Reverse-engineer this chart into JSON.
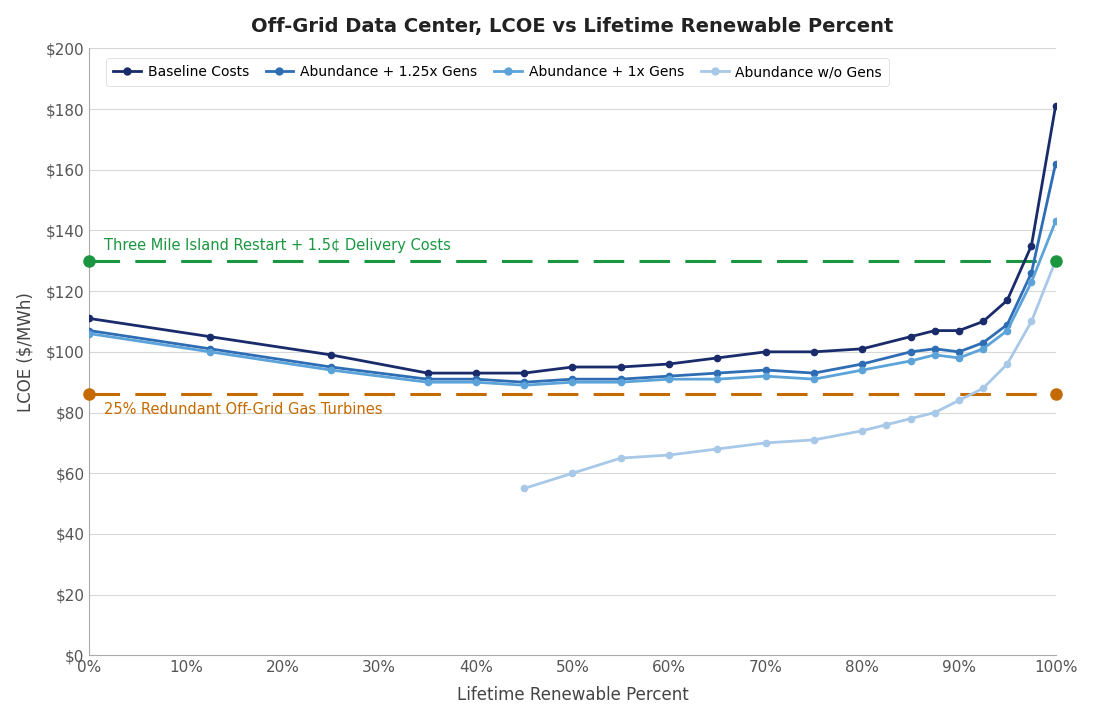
{
  "title": "Off-Grid Data Center, LCOE vs Lifetime Renewable Percent",
  "xlabel": "Lifetime Renewable Percent",
  "ylabel": "LCOE ($/MWh)",
  "background_color": "#f2f2f2",
  "plot_background": "#f2f2f2",
  "grid_color": "#d8d8d8",
  "hline_green": 130,
  "hline_orange": 86,
  "hline_green_color": "#1a9641",
  "hline_orange_color": "#c46a00",
  "hline_green_label": "Three Mile Island Restart + 1.5¢ Delivery Costs",
  "hline_orange_label": "25% Redundant Off-Grid Gas Turbines",
  "ylim": [
    0,
    200
  ],
  "yticks": [
    0,
    20,
    40,
    60,
    80,
    100,
    120,
    140,
    160,
    180,
    200
  ],
  "xticks": [
    0,
    10,
    20,
    30,
    40,
    50,
    60,
    70,
    80,
    90,
    100
  ],
  "series": [
    {
      "label": "Baseline Costs",
      "color": "#1a2b6b",
      "x": [
        0,
        12.5,
        25,
        35,
        40,
        45,
        50,
        55,
        60,
        65,
        70,
        75,
        80,
        85,
        87.5,
        90,
        92.5,
        95,
        97.5,
        100
      ],
      "y": [
        111,
        105,
        99,
        93,
        93,
        93,
        95,
        95,
        96,
        98,
        100,
        100,
        101,
        105,
        107,
        107,
        110,
        117,
        135,
        181
      ]
    },
    {
      "label": "Abundance + 1.25x Gens",
      "color": "#2e6db4",
      "x": [
        0,
        12.5,
        25,
        35,
        40,
        45,
        50,
        55,
        60,
        65,
        70,
        75,
        80,
        85,
        87.5,
        90,
        92.5,
        95,
        97.5,
        100
      ],
      "y": [
        107,
        101,
        95,
        91,
        91,
        90,
        91,
        91,
        92,
        93,
        94,
        93,
        96,
        100,
        101,
        100,
        103,
        109,
        126,
        162
      ]
    },
    {
      "label": "Abundance + 1x Gens",
      "color": "#5ba3d9",
      "x": [
        0,
        12.5,
        25,
        35,
        40,
        45,
        50,
        55,
        60,
        65,
        70,
        75,
        80,
        85,
        87.5,
        90,
        92.5,
        95,
        97.5,
        100
      ],
      "y": [
        106,
        100,
        94,
        90,
        90,
        89,
        90,
        90,
        91,
        91,
        92,
        91,
        94,
        97,
        99,
        98,
        101,
        107,
        123,
        143
      ]
    },
    {
      "label": "Abundance w/o Gens",
      "color": "#a8c8e8",
      "x": [
        45,
        50,
        55,
        60,
        65,
        70,
        75,
        80,
        82.5,
        85,
        87.5,
        90,
        92.5,
        95,
        97.5,
        100
      ],
      "y": [
        55,
        60,
        65,
        66,
        68,
        70,
        71,
        74,
        76,
        78,
        80,
        84,
        88,
        96,
        110,
        130
      ]
    }
  ]
}
